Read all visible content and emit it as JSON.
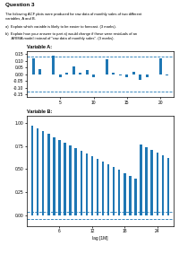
{
  "title": "Question 3",
  "annotations": [
    "The following ACF plots were produced for raw data of monthly sales of two different\nvariables, A and B.",
    "a)  Explain which variable is likely to be easier to forecast. (3 marks).",
    "b)  Explain how your answer to part a) would change if these were residuals of an\n      ARIMA model instead of \"raw data of monthly sales\". (3 marks)."
  ],
  "chart_data": [
    {
      "type": "bar",
      "title": "Variable A:",
      "x": [
        1,
        2,
        3,
        4,
        5,
        6,
        7,
        8,
        9,
        10,
        11,
        12,
        13,
        14,
        15,
        16,
        17,
        18,
        19,
        20,
        21
      ],
      "values": [
        0.12,
        0.04,
        0.0,
        0.14,
        -0.02,
        0.01,
        0.06,
        0.01,
        0.03,
        -0.02,
        0.0,
        0.11,
        0.01,
        -0.01,
        -0.02,
        0.02,
        -0.04,
        -0.02,
        0.0,
        0.12,
        -0.01
      ],
      "confidence_bounds": [
        -0.13,
        0.13
      ],
      "xlim": [
        0,
        22
      ],
      "xticks": [
        5,
        10,
        15,
        20
      ],
      "ylim": [
        -0.17,
        0.17
      ],
      "yticks": [
        {
          "value": -0.15,
          "label": "-0.15"
        },
        {
          "value": -0.1,
          "label": "-0.10"
        },
        {
          "value": -0.05,
          "label": "-0.05"
        },
        {
          "value": 0.0,
          "label": "0.00"
        },
        {
          "value": 0.05,
          "label": "0.05"
        },
        {
          "value": 0.1,
          "label": "0.10"
        },
        {
          "value": 0.15,
          "label": "0.15"
        }
      ]
    },
    {
      "type": "bar",
      "title": "Variable B:",
      "x_label": "lag [1M]",
      "x": [
        1,
        2,
        3,
        4,
        5,
        6,
        7,
        8,
        9,
        10,
        11,
        12,
        13,
        14,
        15,
        16,
        17,
        18,
        19,
        20,
        21,
        22,
        23,
        24,
        25,
        26
      ],
      "values": [
        0.97,
        0.94,
        0.91,
        0.88,
        0.85,
        0.82,
        0.79,
        0.76,
        0.73,
        0.7,
        0.67,
        0.64,
        0.61,
        0.58,
        0.55,
        0.52,
        0.49,
        0.46,
        0.43,
        0.4,
        0.77,
        0.74,
        0.71,
        0.68,
        0.65,
        0.62
      ],
      "confidence_bounds": [
        -0.038,
        0.038
      ],
      "xlim": [
        0,
        27
      ],
      "xticks": [
        6,
        12,
        18,
        24
      ],
      "ylim": [
        -0.12,
        1.08
      ],
      "yticks": [
        {
          "value": 0.0,
          "label": "0.00"
        },
        {
          "value": 0.25,
          "label": "0.25"
        },
        {
          "value": 0.5,
          "label": "0.50"
        },
        {
          "value": 0.75,
          "label": "0.75"
        },
        {
          "value": 1.0,
          "label": "1.00"
        }
      ]
    }
  ]
}
